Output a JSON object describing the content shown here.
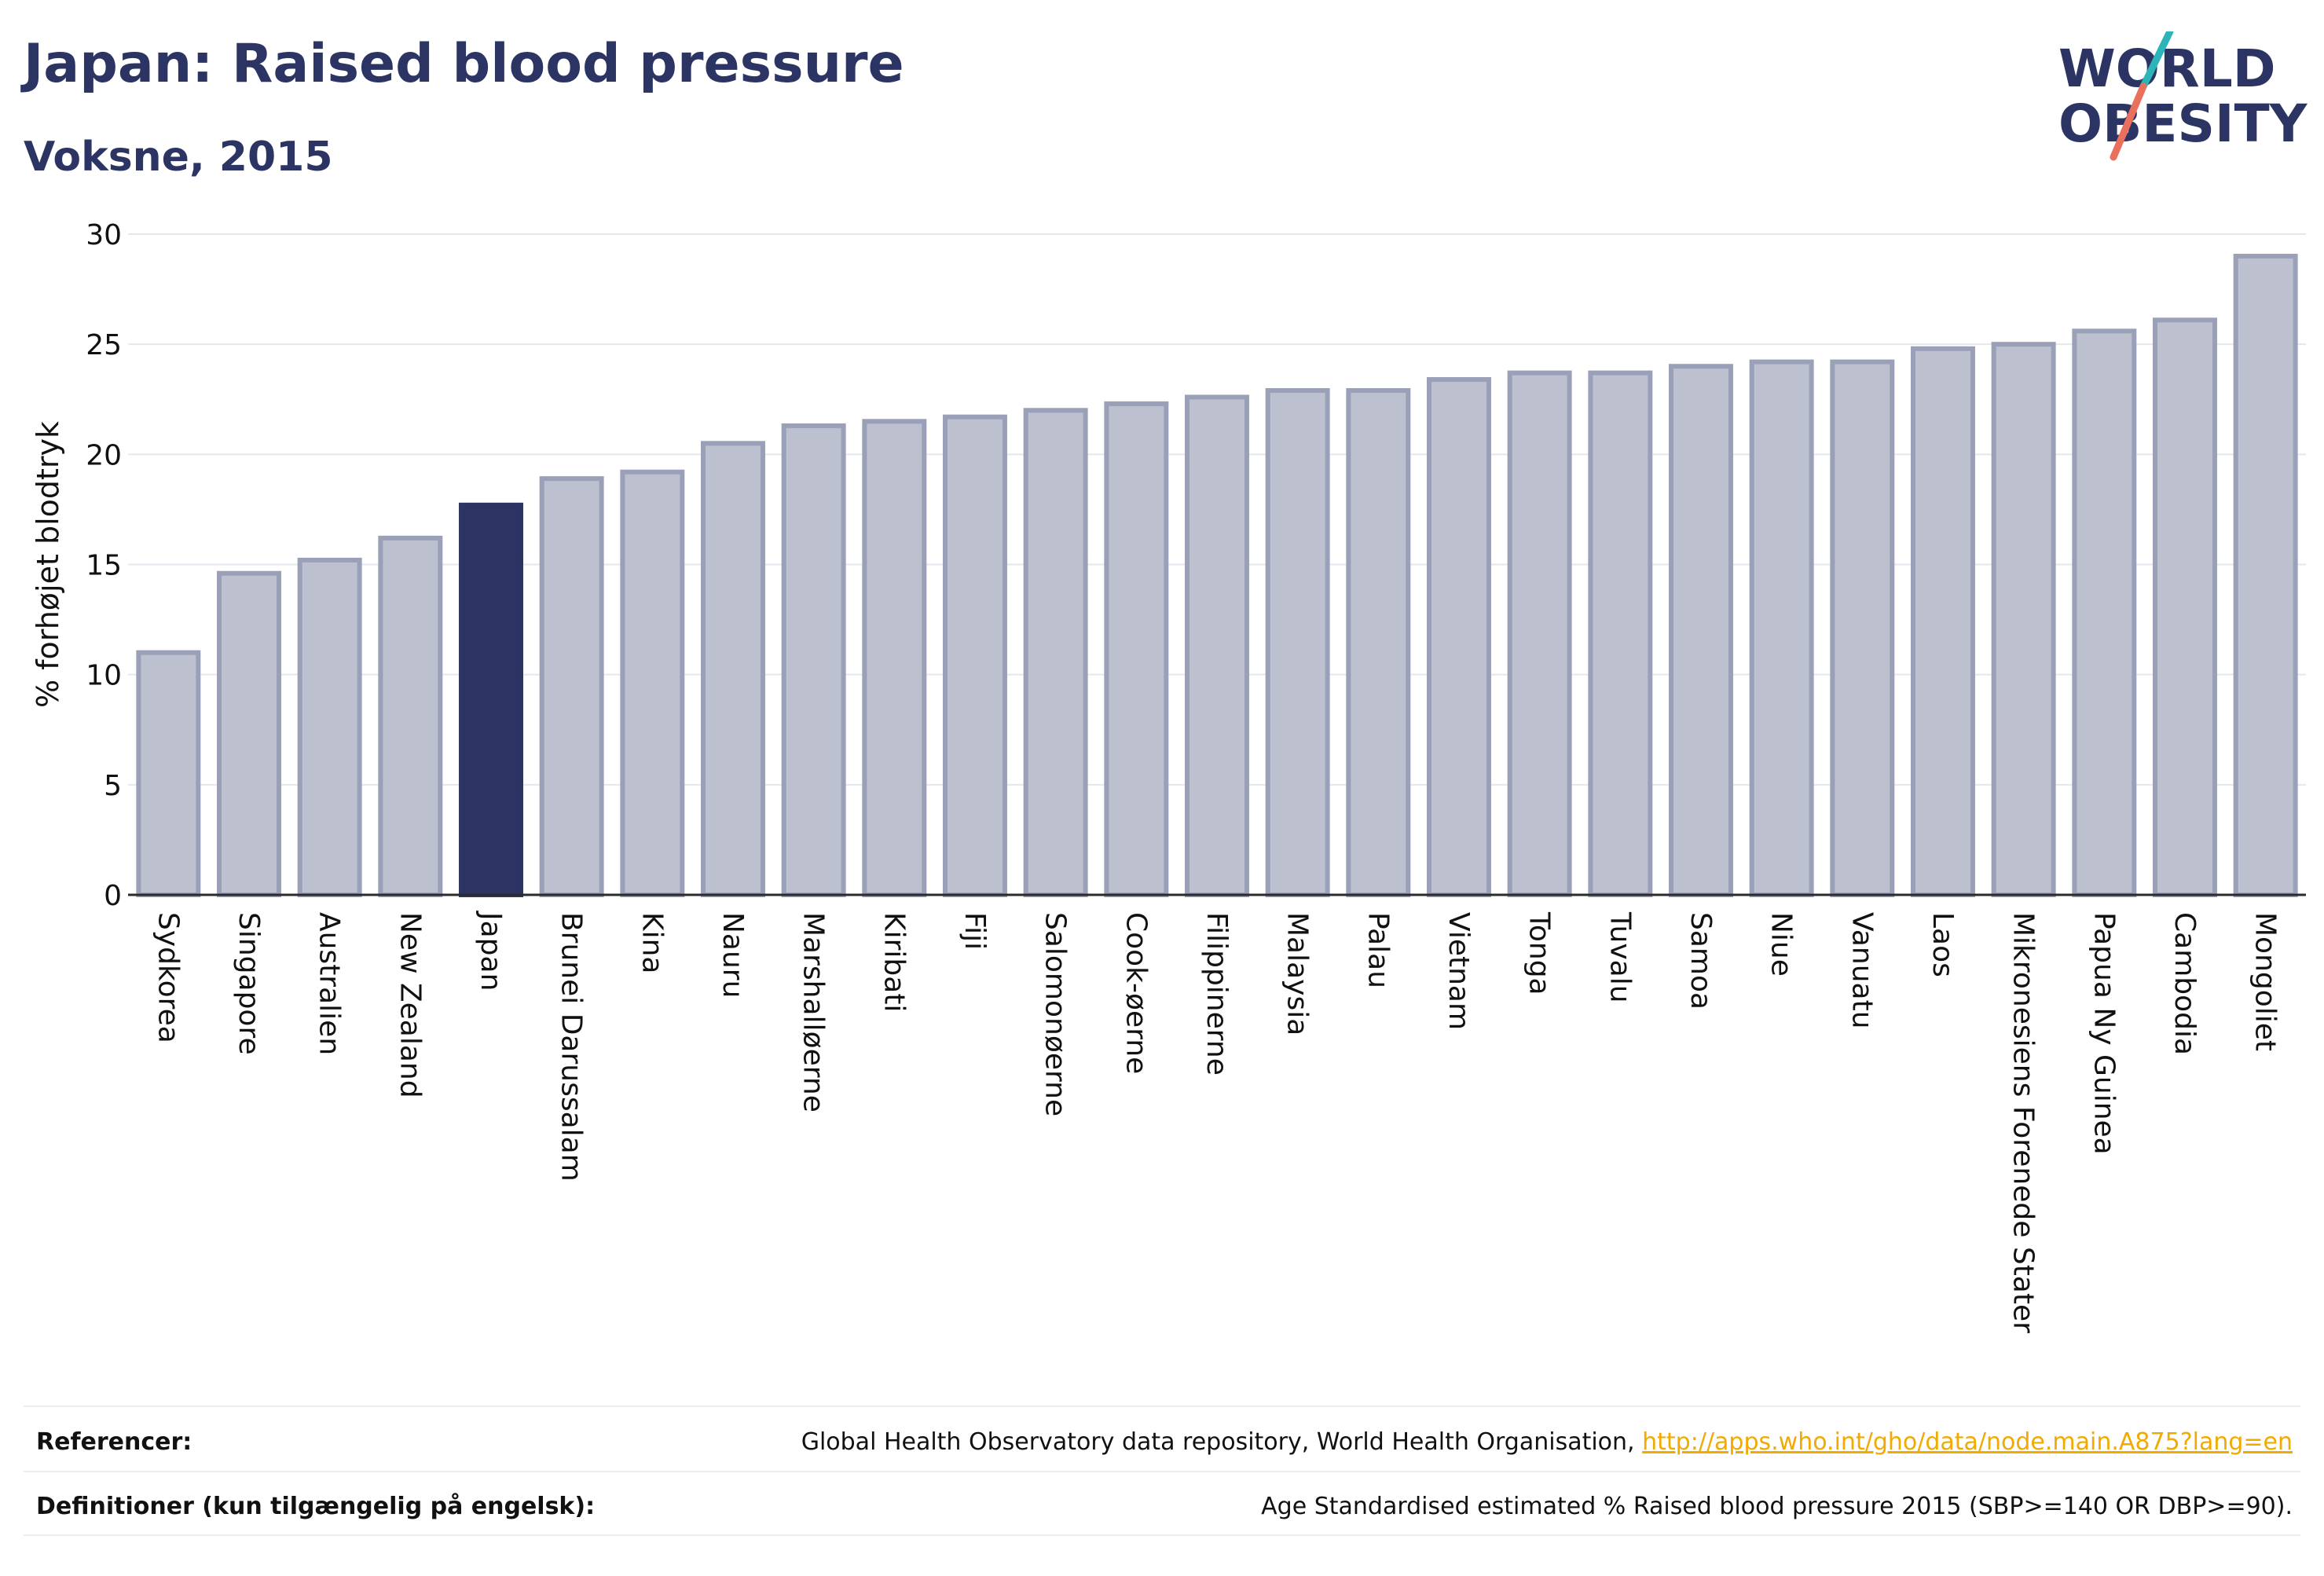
{
  "header": {
    "title": "Japan: Raised blood pressure",
    "subtitle": "Voksne, 2015"
  },
  "logo": {
    "line1": "WORLD",
    "line2": "OBESITY",
    "colors": {
      "text": "#2b3462",
      "slash_top": "#2bb5b8",
      "slash_bottom": "#e8705c"
    }
  },
  "chart_data": {
    "type": "bar",
    "ylabel": "% forhøjet blodtryk",
    "xlabel": "",
    "ylim": [
      0,
      30
    ],
    "yticks": [
      0,
      5,
      10,
      15,
      20,
      25,
      30
    ],
    "grid": true,
    "highlight": "Japan",
    "colors": {
      "bar": "#bcc0cf",
      "bar_border": "#9aa0b8",
      "highlight": "#2b3462",
      "axis": "#2b2b2b",
      "grid": "#e6e6ee"
    },
    "categories": [
      "Sydkorea",
      "Singapore",
      "Australien",
      "New Zealand",
      "Japan",
      "Brunei Darussalam",
      "Kina",
      "Nauru",
      "Marshalløerne",
      "Kiribati",
      "Fiji",
      "Salomonøerne",
      "Cook-øerne",
      "Filippinerne",
      "Malaysia",
      "Palau",
      "Vietnam",
      "Tonga",
      "Tuvalu",
      "Samoa",
      "Niue",
      "Vanuatu",
      "Laos",
      "Mikronesiens Forenede Stater",
      "Papua Ny Guinea",
      "Cambodia",
      "Mongoliet"
    ],
    "values": [
      11.0,
      14.6,
      15.2,
      16.2,
      17.7,
      18.9,
      19.2,
      20.5,
      21.3,
      21.5,
      21.7,
      22.0,
      22.3,
      22.6,
      22.9,
      22.9,
      23.4,
      23.7,
      23.7,
      24.0,
      24.2,
      24.2,
      24.8,
      25.0,
      25.6,
      26.1,
      29.0
    ]
  },
  "footer": {
    "references_label": "Referencer:",
    "references_text": "Global Health Observatory data repository, World Health Organisation,",
    "references_link": "http://apps.who.int/gho/data/node.main.A875?lang=en",
    "definitions_label": "Definitioner (kun tilgængelig på engelsk):",
    "definitions_text": "Age Standardised estimated % Raised blood pressure 2015 (SBP>=140 OR DBP>=90)."
  }
}
